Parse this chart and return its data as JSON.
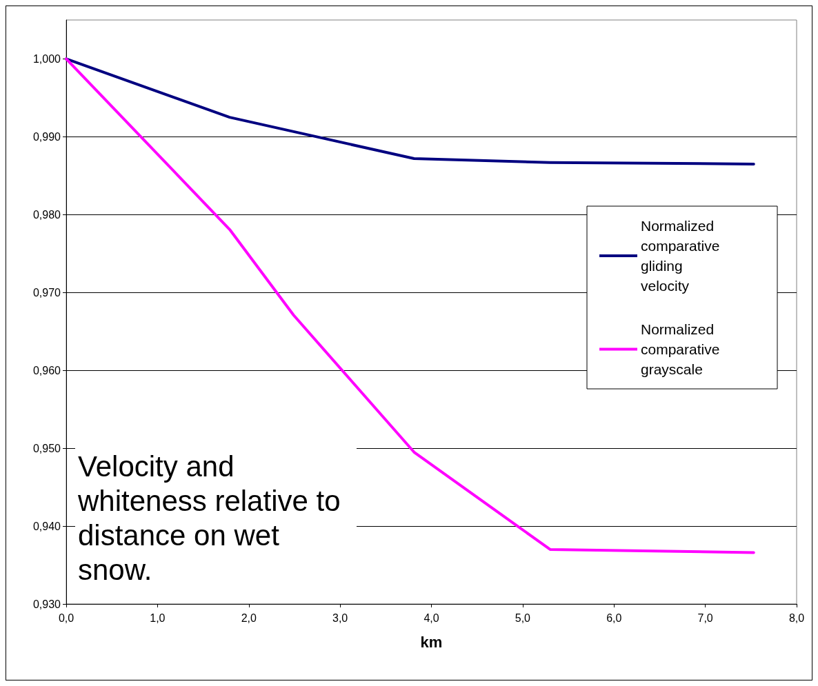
{
  "chart_data": {
    "type": "line",
    "xlabel": "km",
    "series": [
      {
        "name": "Normalized comparative gliding velocity",
        "color": "#000080",
        "x": [
          0,
          1.79,
          3.81,
          5.3,
          7.53
        ],
        "values": [
          1.0,
          0.9925,
          0.9872,
          0.9867,
          0.9865
        ]
      },
      {
        "name": "Normalized comparative grayscale",
        "color": "#ff00ff",
        "x": [
          0,
          1.79,
          2.49,
          3.81,
          5.3,
          7.53
        ],
        "values": [
          1.0,
          0.9781,
          0.9671,
          0.9495,
          0.937,
          0.9366
        ]
      }
    ],
    "xlim": [
      0,
      8
    ],
    "xticks": [
      {
        "value": 0,
        "label": "0,0"
      },
      {
        "value": 1,
        "label": "1,0"
      },
      {
        "value": 2,
        "label": "2,0"
      },
      {
        "value": 3,
        "label": "3,0"
      },
      {
        "value": 4,
        "label": "4,0"
      },
      {
        "value": 5,
        "label": "5,0"
      },
      {
        "value": 6,
        "label": "6,0"
      },
      {
        "value": 7,
        "label": "7,0"
      },
      {
        "value": 8,
        "label": "8,0"
      }
    ],
    "ylim": [
      0.93,
      1.005
    ],
    "yticks": [
      {
        "value": 0.93,
        "label": "0,930"
      },
      {
        "value": 0.94,
        "label": "0,940"
      },
      {
        "value": 0.95,
        "label": "0,950"
      },
      {
        "value": 0.96,
        "label": "0,960"
      },
      {
        "value": 0.97,
        "label": "0,970"
      },
      {
        "value": 0.98,
        "label": "0,980"
      },
      {
        "value": 0.99,
        "label": "0,990"
      },
      {
        "value": 1.0,
        "label": "1,000"
      }
    ],
    "grid": "y",
    "legend": "right",
    "marker": "none",
    "line_style": "solid",
    "annotations": [
      "Velocity and whiteness relative to distance on wet snow."
    ]
  }
}
